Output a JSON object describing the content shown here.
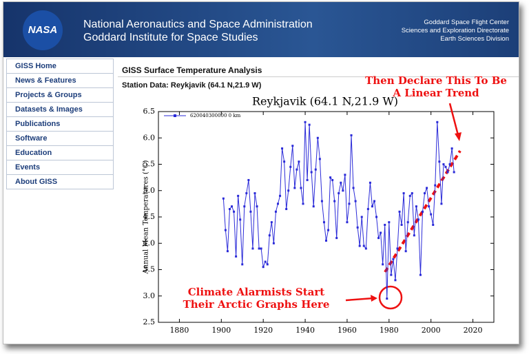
{
  "header": {
    "logo": "NASA",
    "title": "National Aeronautics and Space Administration",
    "subtitle": "Goddard Institute for Space Studies",
    "right": [
      "Goddard Space Flight Center",
      "Sciences and Exploration Directorate",
      "Earth Sciences Division"
    ]
  },
  "nav": [
    "GISS Home",
    "News & Features",
    "Projects & Groups",
    "Datasets & Images",
    "Publications",
    "Software",
    "Education",
    "Events",
    "About GISS"
  ],
  "content": {
    "section_title": "GISS Surface Temperature Analysis",
    "station": "Station Data: Reykjavik (64.1 N,21.9 W)"
  },
  "chart_data": {
    "type": "line",
    "title": "Reykjavik (64.1 N,21.9 W)",
    "y_label": "Annual Mean Temperatures (°C)",
    "x": [
      1901,
      1902,
      1903,
      1904,
      1905,
      1906,
      1907,
      1908,
      1909,
      1910,
      1911,
      1912,
      1913,
      1914,
      1915,
      1916,
      1917,
      1918,
      1919,
      1920,
      1921,
      1922,
      1923,
      1924,
      1925,
      1926,
      1927,
      1928,
      1929,
      1930,
      1931,
      1932,
      1933,
      1934,
      1935,
      1936,
      1937,
      1938,
      1939,
      1940,
      1941,
      1942,
      1943,
      1944,
      1945,
      1946,
      1947,
      1948,
      1949,
      1950,
      1951,
      1952,
      1953,
      1954,
      1955,
      1956,
      1957,
      1958,
      1959,
      1960,
      1961,
      1962,
      1963,
      1964,
      1965,
      1966,
      1967,
      1968,
      1969,
      1970,
      1971,
      1972,
      1973,
      1974,
      1975,
      1976,
      1977,
      1978,
      1979,
      1980,
      1981,
      1982,
      1983,
      1984,
      1985,
      1986,
      1987,
      1988,
      1989,
      1990,
      1991,
      1992,
      1993,
      1994,
      1995,
      1996,
      1997,
      1998,
      1999,
      2000,
      2001,
      2002,
      2003,
      2004,
      2005,
      2006,
      2007,
      2008,
      2009,
      2010,
      2011
    ],
    "series": [
      {
        "name": "620040300000 0 km",
        "color": "#2a2ad8",
        "values": [
          4.85,
          4.25,
          3.85,
          4.65,
          4.7,
          4.6,
          3.75,
          4.9,
          4.45,
          3.6,
          4.7,
          4.95,
          5.2,
          4.6,
          3.9,
          4.95,
          4.7,
          3.9,
          3.9,
          3.55,
          3.65,
          3.6,
          4.15,
          4.4,
          4.0,
          4.6,
          4.75,
          4.9,
          5.8,
          5.55,
          4.65,
          5.0,
          5.45,
          5.85,
          5.05,
          5.4,
          5.55,
          5.05,
          4.75,
          6.3,
          5.2,
          6.25,
          5.35,
          4.7,
          5.4,
          6.0,
          5.6,
          4.8,
          4.4,
          4.05,
          4.25,
          5.25,
          5.2,
          4.8,
          4.1,
          4.95,
          5.15,
          5.0,
          5.3,
          4.4,
          4.75,
          6.05,
          5.05,
          4.8,
          4.3,
          3.95,
          4.5,
          3.95,
          3.9,
          4.65,
          5.15,
          4.7,
          4.8,
          4.5,
          4.1,
          4.2,
          3.6,
          4.35,
          2.95,
          4.4,
          3.4,
          3.7,
          3.3,
          3.9,
          4.6,
          4.35,
          4.95,
          3.85,
          4.4,
          4.9,
          4.95,
          4.15,
          4.7,
          4.45,
          3.4,
          4.6,
          4.95,
          5.05,
          4.7,
          4.55,
          4.35,
          5.1,
          6.3,
          5.55,
          4.75,
          5.5,
          5.45,
          5.35,
          5.5,
          5.8,
          5.35
        ]
      }
    ],
    "xlim": [
      1870,
      2030
    ],
    "xticks": [
      1880,
      1900,
      1920,
      1940,
      1960,
      1980,
      2000,
      2020
    ],
    "ylim": [
      2.5,
      6.5
    ],
    "yticks": [
      2.5,
      {
        "value": 3,
        "label": "3.0"
      },
      3.5,
      {
        "value": 4,
        "label": "4.0"
      },
      4.5,
      {
        "value": 5,
        "label": "5.0"
      },
      5.5,
      {
        "value": 6,
        "label": "6.0"
      },
      6.5
    ],
    "annotations": [
      {
        "lines": [
          "Then Declare This To Be",
          "A Linear Trend"
        ]
      },
      {
        "lines": [
          "Climate Alarmists Start",
          "Their Arctic Graphs Here"
        ]
      }
    ]
  }
}
